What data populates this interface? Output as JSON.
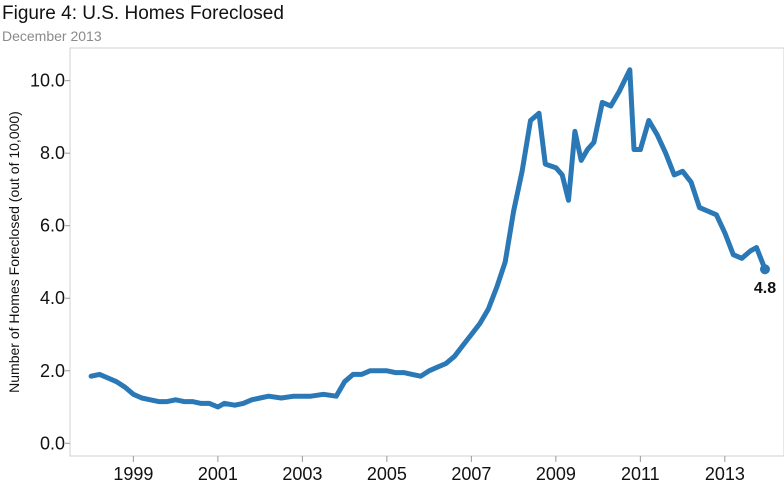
{
  "chart_data": {
    "type": "line",
    "title": "Figure 4: U.S. Homes Foreclosed",
    "subtitle": "December 2013",
    "xlabel": "",
    "ylabel": "Number of Homes Foreclosed (out of 10,000)",
    "xlim": [
      1997.5,
      2014.4
    ],
    "ylim": [
      -0.35,
      10.9
    ],
    "x_ticks": [
      1999,
      2001,
      2003,
      2005,
      2007,
      2009,
      2011,
      2013
    ],
    "x_tick_labels": [
      "1999",
      "2001",
      "2003",
      "2005",
      "2007",
      "2009",
      "2011",
      "2013"
    ],
    "y_ticks": [
      0.0,
      2.0,
      4.0,
      6.0,
      8.0,
      10.0
    ],
    "y_tick_labels": [
      "0.0",
      "2.0",
      "4.0",
      "6.0",
      "8.0",
      "10.0"
    ],
    "end_label": "4.8",
    "line_color": "#2a78b6",
    "series": [
      {
        "x": [
          1998.0,
          1998.2,
          1998.4,
          1998.6,
          1998.8,
          1999.0,
          1999.2,
          1999.4,
          1999.6,
          1999.8,
          2000.0,
          2000.2,
          2000.4,
          2000.6,
          2000.8,
          2001.0,
          2001.15,
          2001.4,
          2001.6,
          2001.8,
          2002.0,
          2002.2,
          2002.5,
          2002.8,
          2003.0,
          2003.2,
          2003.5,
          2003.8,
          2004.0,
          2004.2,
          2004.4,
          2004.6,
          2004.8,
          2005.0,
          2005.2,
          2005.4,
          2005.6,
          2005.8,
          2006.0,
          2006.2,
          2006.4,
          2006.6,
          2006.8,
          2007.0,
          2007.2,
          2007.4,
          2007.6,
          2007.8,
          2008.0,
          2008.2,
          2008.4,
          2008.6,
          2008.75,
          2009.0,
          2009.15,
          2009.3,
          2009.45,
          2009.6,
          2009.75,
          2009.9,
          2010.1,
          2010.3,
          2010.5,
          2010.75,
          2010.85,
          2011.0,
          2011.2,
          2011.4,
          2011.6,
          2011.8,
          2012.0,
          2012.2,
          2012.4,
          2012.6,
          2012.8,
          2013.0,
          2013.2,
          2013.4,
          2013.6,
          2013.75,
          2013.95
        ],
        "y": [
          1.85,
          1.9,
          1.8,
          1.7,
          1.55,
          1.35,
          1.25,
          1.2,
          1.15,
          1.15,
          1.2,
          1.15,
          1.15,
          1.1,
          1.1,
          1.0,
          1.1,
          1.05,
          1.1,
          1.2,
          1.25,
          1.3,
          1.25,
          1.3,
          1.3,
          1.3,
          1.35,
          1.3,
          1.7,
          1.9,
          1.9,
          2.0,
          2.0,
          2.0,
          1.95,
          1.95,
          1.9,
          1.85,
          2.0,
          2.1,
          2.2,
          2.4,
          2.7,
          3.0,
          3.3,
          3.7,
          4.3,
          5.0,
          6.4,
          7.5,
          8.9,
          9.1,
          7.7,
          7.6,
          7.4,
          6.7,
          8.6,
          7.8,
          8.1,
          8.3,
          9.4,
          9.3,
          9.7,
          10.3,
          8.1,
          8.1,
          8.9,
          8.5,
          8.0,
          7.4,
          7.5,
          7.2,
          6.5,
          6.4,
          6.3,
          5.8,
          5.2,
          5.1,
          5.3,
          5.4,
          4.8
        ]
      }
    ]
  }
}
